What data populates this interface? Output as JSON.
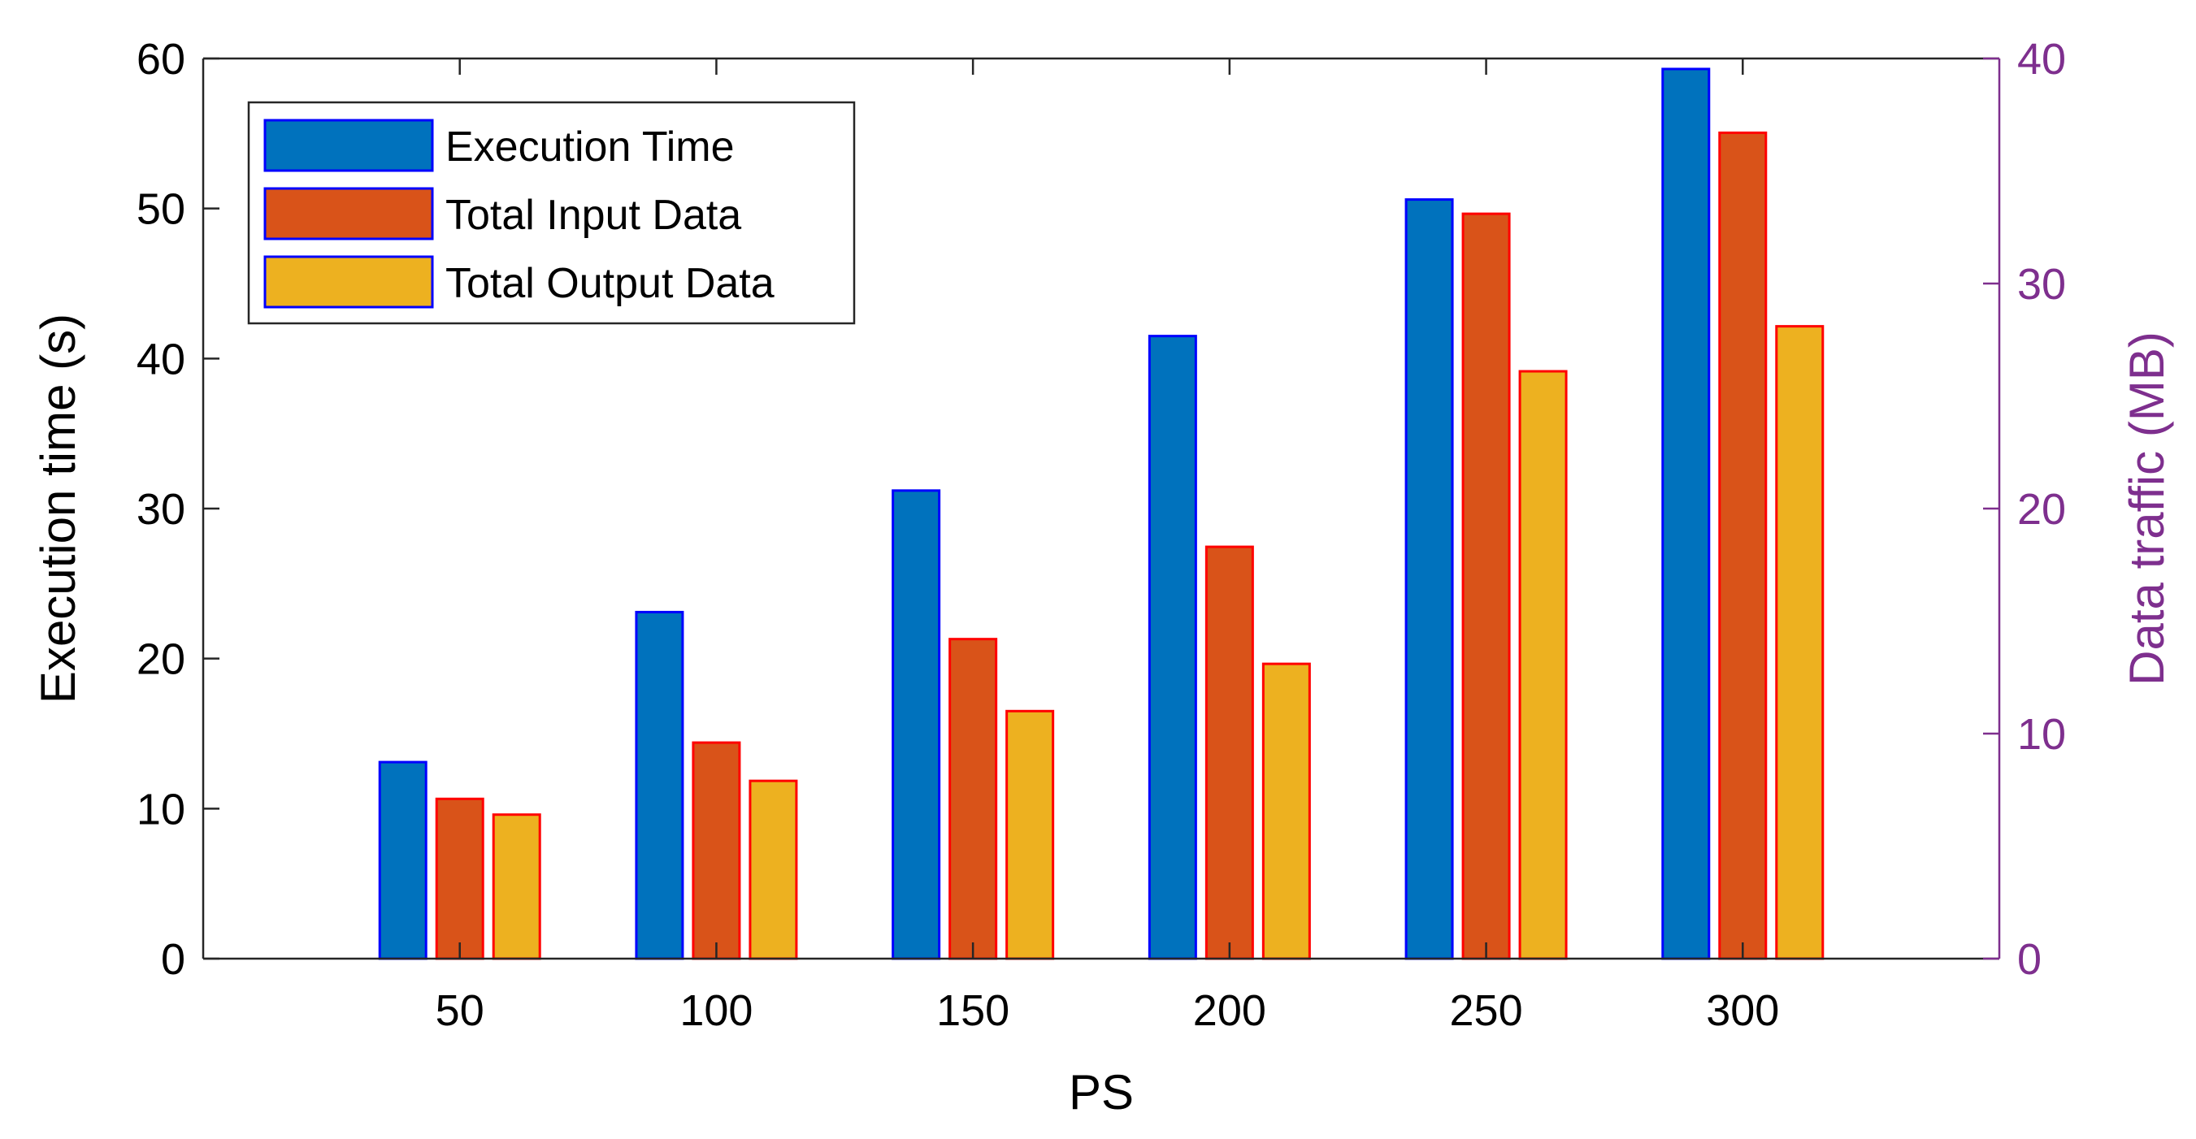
{
  "chart_data": {
    "type": "bar",
    "xlabel": "PS",
    "ylabel": "Execution time (s)",
    "ylabel_right": "Data traffic (MB)",
    "categories": [
      "50",
      "100",
      "150",
      "200",
      "250",
      "300"
    ],
    "ylim": [
      0,
      60
    ],
    "ylim_right": [
      0,
      40
    ],
    "yticks": [
      "0",
      "10",
      "20",
      "30",
      "40",
      "50",
      "60"
    ],
    "yticks_right": [
      "0",
      "10",
      "20",
      "30",
      "40"
    ],
    "series": [
      {
        "name": "Execution Time",
        "axis": "left",
        "values": [
          13.1,
          23.1,
          31.2,
          41.5,
          50.6,
          59.3
        ],
        "fill": "#0072BD",
        "edge": "#0000FF"
      },
      {
        "name": "Total Input Data",
        "axis": "right",
        "values": [
          7.1,
          9.6,
          14.2,
          18.3,
          33.1,
          36.7
        ],
        "fill": "#D95319",
        "edge": "#FF0000"
      },
      {
        "name": "Total Output Data",
        "axis": "right",
        "values": [
          6.4,
          7.9,
          11.0,
          13.1,
          26.1,
          28.1
        ],
        "fill": "#EDB120",
        "edge": "#FF0000"
      }
    ],
    "legend": "top-left",
    "right_axis_color": "#7E2F8E"
  }
}
